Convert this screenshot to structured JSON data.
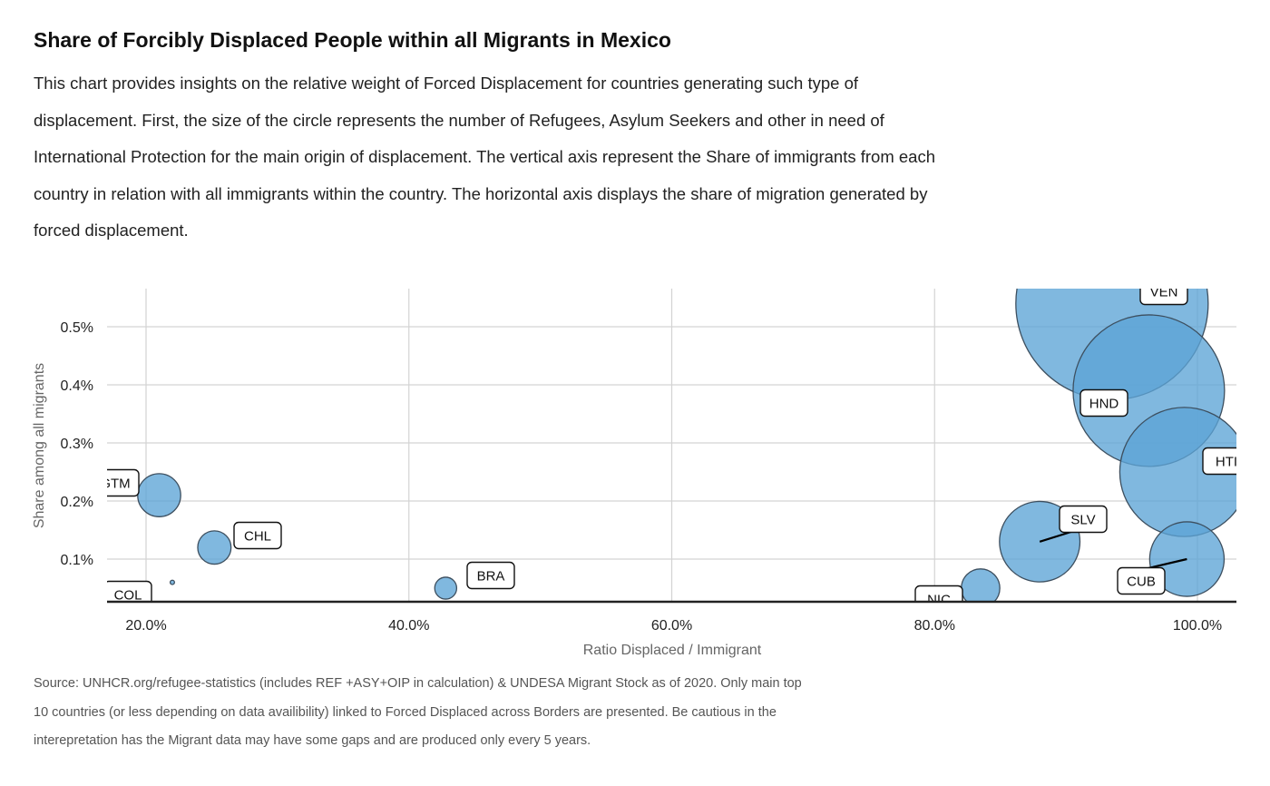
{
  "header": {
    "title": "Share of Forcibly Displaced People within all Migrants in Mexico",
    "subtitle": "This chart provides insights on the relative weight of Forced Displacement for countries generating such type of displacement. First, the size of the circle represents the number of Refugees, Asylum Seekers and other in need of International Protection for the main origin of displacement. The vertical axis represent the Share of immigrants from each country in relation with all immigrants within the country. The horizontal axis displays the share of migration generated by forced displacement."
  },
  "caption": "Source: UNHCR.org/refugee-statistics (includes REF +ASY+OIP in calculation) & UNDESA Migrant Stock as of 2020. Only main top 10 countries (or less depending on data availibility) linked to Forced Displaced across Borders are presented. Be cautious in the interepretation has the Migrant data may have some gaps and are produced only every 5 years.",
  "chart_data": {
    "type": "scatter",
    "xlabel": "Ratio Displaced / Immigrant",
    "ylabel": "Share among all migrants",
    "xlim": [
      17,
      103
    ],
    "ylim": [
      0.025,
      0.57
    ],
    "x_ticks": [
      20,
      40,
      60,
      80,
      100
    ],
    "x_tick_labels": [
      "20.0%",
      "40.0%",
      "60.0%",
      "80.0%",
      "100.0%"
    ],
    "y_ticks": [
      0.1,
      0.2,
      0.3,
      0.4,
      0.5
    ],
    "y_tick_labels": [
      "0.1%",
      "0.2%",
      "0.3%",
      "0.4%",
      "0.5%"
    ],
    "grid": true,
    "bubble_color": "#5ca4d6",
    "bubble_stroke": "#3d4f5f",
    "points": [
      {
        "label": "VEN",
        "x": 93.5,
        "y": 0.54,
        "size": 1.0
      },
      {
        "label": "HND",
        "x": 96.3,
        "y": 0.39,
        "size": 0.62
      },
      {
        "label": "HTI",
        "x": 99.0,
        "y": 0.25,
        "size": 0.45
      },
      {
        "label": "SLV",
        "x": 88.0,
        "y": 0.13,
        "size": 0.175
      },
      {
        "label": "CUB",
        "x": 99.2,
        "y": 0.1,
        "size": 0.15
      },
      {
        "label": "NIC",
        "x": 83.5,
        "y": 0.05,
        "size": 0.04
      },
      {
        "label": "GTM",
        "x": 21.0,
        "y": 0.21,
        "size": 0.05
      },
      {
        "label": "CHL",
        "x": 25.2,
        "y": 0.12,
        "size": 0.03
      },
      {
        "label": "BRA",
        "x": 42.8,
        "y": 0.05,
        "size": 0.013
      },
      {
        "label": "COL",
        "x": 22.0,
        "y": 0.06,
        "size": 0.0005
      }
    ]
  }
}
